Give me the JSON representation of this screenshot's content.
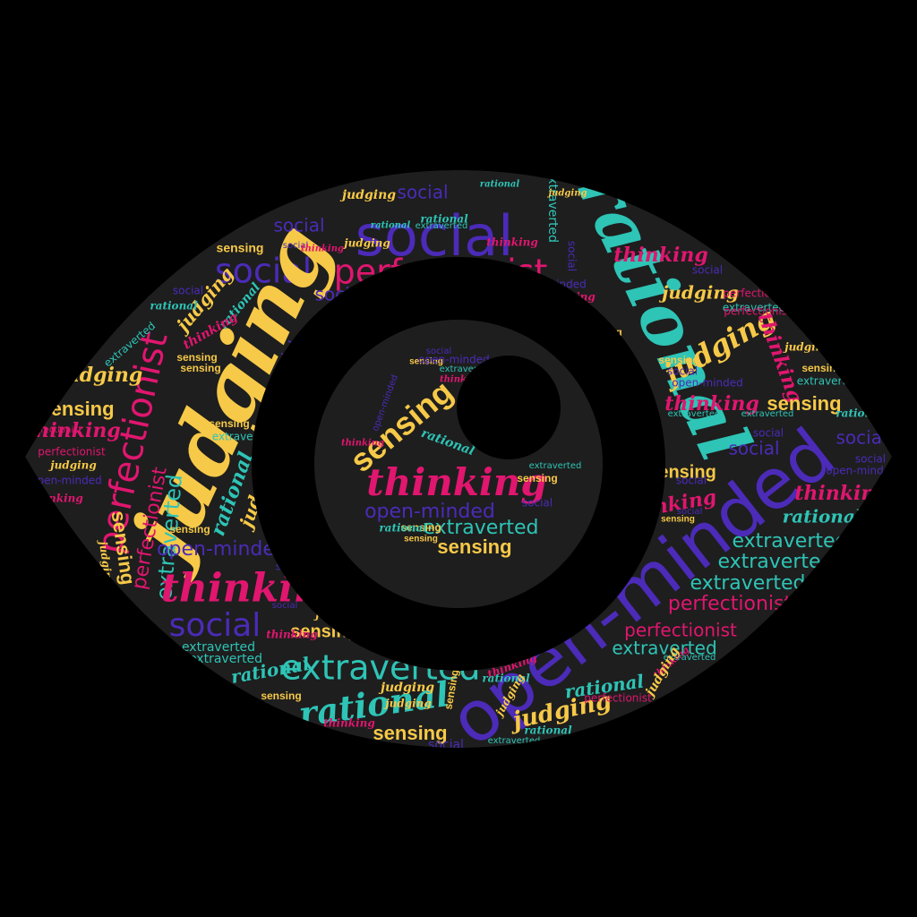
{
  "colors": {
    "background": "#000000",
    "eye_fill": "#1e1e1e",
    "teal": "#2ec4b6",
    "purple": "#4b2bb8",
    "magenta": "#e0166f",
    "yellow": "#f7c948"
  },
  "words": {
    "social": "social",
    "perfectionist": "perfectionist",
    "rational": "rational",
    "judging": "judging",
    "thinking": "thinking",
    "sensing": "sensing",
    "extraverted": "extraverted",
    "open_minded": "open-minded"
  }
}
